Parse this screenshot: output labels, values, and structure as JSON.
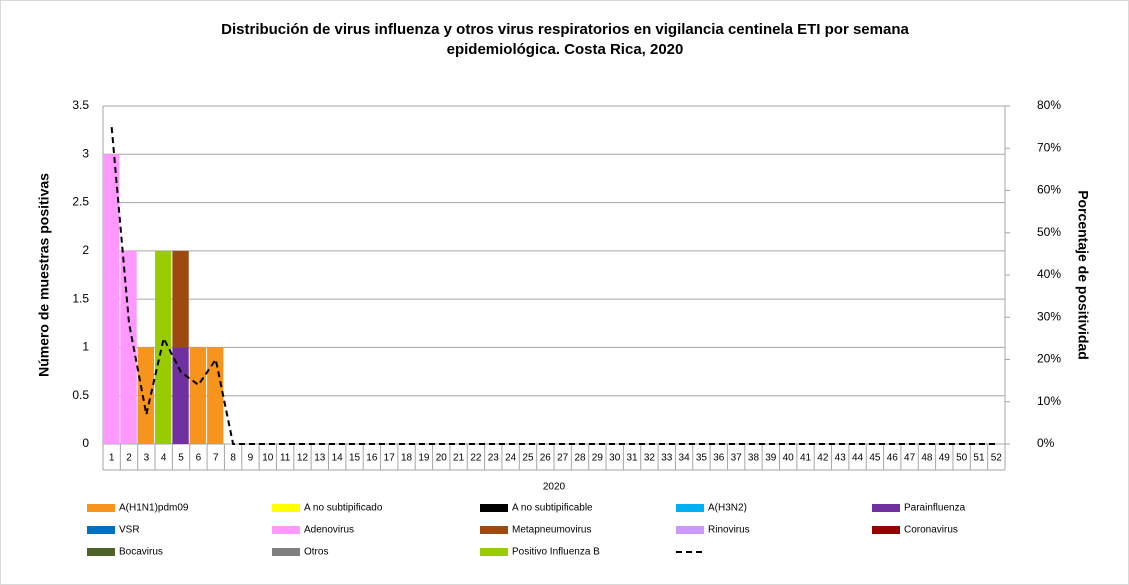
{
  "chart_data": {
    "type": "bar",
    "title": [
      "Distribución de virus influenza y otros virus respiratorios en vigilancia centinela ETI por semana",
      "epidemiológica. Costa Rica, 2020"
    ],
    "xlabel": "2020",
    "ylabel": "Número de muestras positivas",
    "y2label": "Porcentaje de positividad",
    "categories": [
      "1",
      "2",
      "3",
      "4",
      "5",
      "6",
      "7",
      "8",
      "9",
      "10",
      "11",
      "12",
      "13",
      "14",
      "15",
      "16",
      "17",
      "18",
      "19",
      "20",
      "21",
      "22",
      "23",
      "24",
      "25",
      "26",
      "27",
      "28",
      "29",
      "30",
      "31",
      "32",
      "33",
      "34",
      "35",
      "36",
      "37",
      "38",
      "39",
      "40",
      "41",
      "42",
      "43",
      "44",
      "45",
      "46",
      "47",
      "48",
      "49",
      "50",
      "51",
      "52"
    ],
    "ylim": [
      0,
      3.5
    ],
    "yticks": [
      0,
      0.5,
      1,
      1.5,
      2,
      2.5,
      3,
      3.5
    ],
    "y2lim": [
      0,
      80
    ],
    "y2ticks": [
      {
        "value": 0,
        "label": "0%"
      },
      {
        "value": 10,
        "label": "10%"
      },
      {
        "value": 20,
        "label": "20%"
      },
      {
        "value": 30,
        "label": "30%"
      },
      {
        "value": 40,
        "label": "40%"
      },
      {
        "value": 50,
        "label": "50%"
      },
      {
        "value": 60,
        "label": "60%"
      },
      {
        "value": 70,
        "label": "70%"
      },
      {
        "value": 80,
        "label": "80%"
      }
    ],
    "grid": true,
    "stacked": true,
    "series": [
      {
        "name": "A(H1N1)pdm09",
        "color": "#f7941d",
        "values": [
          0,
          0,
          1,
          0,
          0,
          1,
          1,
          0,
          0,
          0,
          0,
          0,
          0,
          0,
          0,
          0,
          0,
          0,
          0,
          0,
          0,
          0,
          0,
          0,
          0,
          0,
          0,
          0,
          0,
          0,
          0,
          0,
          0,
          0,
          0,
          0,
          0,
          0,
          0,
          0,
          0,
          0,
          0,
          0,
          0,
          0,
          0,
          0,
          0,
          0,
          0,
          0
        ]
      },
      {
        "name": "A no subtipificado",
        "color": "#ffff00",
        "values": [
          0,
          0,
          0,
          0,
          0,
          0,
          0,
          0,
          0,
          0,
          0,
          0,
          0,
          0,
          0,
          0,
          0,
          0,
          0,
          0,
          0,
          0,
          0,
          0,
          0,
          0,
          0,
          0,
          0,
          0,
          0,
          0,
          0,
          0,
          0,
          0,
          0,
          0,
          0,
          0,
          0,
          0,
          0,
          0,
          0,
          0,
          0,
          0,
          0,
          0,
          0,
          0
        ]
      },
      {
        "name": "A no subtipificable",
        "color": "#000000",
        "values": [
          0,
          0,
          0,
          0,
          0,
          0,
          0,
          0,
          0,
          0,
          0,
          0,
          0,
          0,
          0,
          0,
          0,
          0,
          0,
          0,
          0,
          0,
          0,
          0,
          0,
          0,
          0,
          0,
          0,
          0,
          0,
          0,
          0,
          0,
          0,
          0,
          0,
          0,
          0,
          0,
          0,
          0,
          0,
          0,
          0,
          0,
          0,
          0,
          0,
          0,
          0,
          0
        ]
      },
      {
        "name": "A(H3N2)",
        "color": "#00b0f0",
        "values": [
          0,
          0,
          0,
          0,
          0,
          0,
          0,
          0,
          0,
          0,
          0,
          0,
          0,
          0,
          0,
          0,
          0,
          0,
          0,
          0,
          0,
          0,
          0,
          0,
          0,
          0,
          0,
          0,
          0,
          0,
          0,
          0,
          0,
          0,
          0,
          0,
          0,
          0,
          0,
          0,
          0,
          0,
          0,
          0,
          0,
          0,
          0,
          0,
          0,
          0,
          0,
          0
        ]
      },
      {
        "name": "Parainfluenza",
        "color": "#7030a0",
        "values": [
          0,
          0,
          0,
          0,
          1,
          0,
          0,
          0,
          0,
          0,
          0,
          0,
          0,
          0,
          0,
          0,
          0,
          0,
          0,
          0,
          0,
          0,
          0,
          0,
          0,
          0,
          0,
          0,
          0,
          0,
          0,
          0,
          0,
          0,
          0,
          0,
          0,
          0,
          0,
          0,
          0,
          0,
          0,
          0,
          0,
          0,
          0,
          0,
          0,
          0,
          0,
          0
        ]
      },
      {
        "name": "VSR",
        "color": "#0070c0",
        "values": [
          0,
          0,
          0,
          0,
          0,
          0,
          0,
          0,
          0,
          0,
          0,
          0,
          0,
          0,
          0,
          0,
          0,
          0,
          0,
          0,
          0,
          0,
          0,
          0,
          0,
          0,
          0,
          0,
          0,
          0,
          0,
          0,
          0,
          0,
          0,
          0,
          0,
          0,
          0,
          0,
          0,
          0,
          0,
          0,
          0,
          0,
          0,
          0,
          0,
          0,
          0,
          0
        ]
      },
      {
        "name": "Adenovirus",
        "color": "#ff99ff",
        "values": [
          3,
          2,
          0,
          0,
          0,
          0,
          0,
          0,
          0,
          0,
          0,
          0,
          0,
          0,
          0,
          0,
          0,
          0,
          0,
          0,
          0,
          0,
          0,
          0,
          0,
          0,
          0,
          0,
          0,
          0,
          0,
          0,
          0,
          0,
          0,
          0,
          0,
          0,
          0,
          0,
          0,
          0,
          0,
          0,
          0,
          0,
          0,
          0,
          0,
          0,
          0,
          0
        ]
      },
      {
        "name": "Metapneumovirus",
        "color": "#9c4a0f",
        "values": [
          0,
          0,
          0,
          0,
          1,
          0,
          0,
          0,
          0,
          0,
          0,
          0,
          0,
          0,
          0,
          0,
          0,
          0,
          0,
          0,
          0,
          0,
          0,
          0,
          0,
          0,
          0,
          0,
          0,
          0,
          0,
          0,
          0,
          0,
          0,
          0,
          0,
          0,
          0,
          0,
          0,
          0,
          0,
          0,
          0,
          0,
          0,
          0,
          0,
          0,
          0,
          0
        ]
      },
      {
        "name": "Rinovirus",
        "color": "#cc99ff",
        "values": [
          0,
          0,
          0,
          0,
          0,
          0,
          0,
          0,
          0,
          0,
          0,
          0,
          0,
          0,
          0,
          0,
          0,
          0,
          0,
          0,
          0,
          0,
          0,
          0,
          0,
          0,
          0,
          0,
          0,
          0,
          0,
          0,
          0,
          0,
          0,
          0,
          0,
          0,
          0,
          0,
          0,
          0,
          0,
          0,
          0,
          0,
          0,
          0,
          0,
          0,
          0,
          0
        ]
      },
      {
        "name": "Coronavirus",
        "color": "#990000",
        "values": [
          0,
          0,
          0,
          0,
          0,
          0,
          0,
          0,
          0,
          0,
          0,
          0,
          0,
          0,
          0,
          0,
          0,
          0,
          0,
          0,
          0,
          0,
          0,
          0,
          0,
          0,
          0,
          0,
          0,
          0,
          0,
          0,
          0,
          0,
          0,
          0,
          0,
          0,
          0,
          0,
          0,
          0,
          0,
          0,
          0,
          0,
          0,
          0,
          0,
          0,
          0,
          0
        ]
      },
      {
        "name": "Bocavirus",
        "color": "#4f6228",
        "values": [
          0,
          0,
          0,
          0,
          0,
          0,
          0,
          0,
          0,
          0,
          0,
          0,
          0,
          0,
          0,
          0,
          0,
          0,
          0,
          0,
          0,
          0,
          0,
          0,
          0,
          0,
          0,
          0,
          0,
          0,
          0,
          0,
          0,
          0,
          0,
          0,
          0,
          0,
          0,
          0,
          0,
          0,
          0,
          0,
          0,
          0,
          0,
          0,
          0,
          0,
          0,
          0
        ]
      },
      {
        "name": "Otros",
        "color": "#808080",
        "values": [
          0,
          0,
          0,
          0,
          0,
          0,
          0,
          0,
          0,
          0,
          0,
          0,
          0,
          0,
          0,
          0,
          0,
          0,
          0,
          0,
          0,
          0,
          0,
          0,
          0,
          0,
          0,
          0,
          0,
          0,
          0,
          0,
          0,
          0,
          0,
          0,
          0,
          0,
          0,
          0,
          0,
          0,
          0,
          0,
          0,
          0,
          0,
          0,
          0,
          0,
          0,
          0
        ]
      },
      {
        "name": "Positivo Influenza  B",
        "color": "#99cc00",
        "values": [
          0,
          0,
          0,
          2,
          0,
          0,
          0,
          0,
          0,
          0,
          0,
          0,
          0,
          0,
          0,
          0,
          0,
          0,
          0,
          0,
          0,
          0,
          0,
          0,
          0,
          0,
          0,
          0,
          0,
          0,
          0,
          0,
          0,
          0,
          0,
          0,
          0,
          0,
          0,
          0,
          0,
          0,
          0,
          0,
          0,
          0,
          0,
          0,
          0,
          0,
          0,
          0
        ]
      },
      {
        "type": "line",
        "axis": "y2",
        "color": "#000000",
        "dashed": true,
        "values": [
          75,
          28.6,
          7,
          25,
          17,
          14,
          20,
          0,
          0,
          0,
          0,
          0,
          0,
          0,
          0,
          0,
          0,
          0,
          0,
          0,
          0,
          0,
          0,
          0,
          0,
          0,
          0,
          0,
          0,
          0,
          0,
          0,
          0,
          0,
          0,
          0,
          0,
          0,
          0,
          0,
          0,
          0,
          0,
          0,
          0,
          0,
          0,
          0,
          0,
          0,
          0,
          0
        ]
      }
    ]
  }
}
